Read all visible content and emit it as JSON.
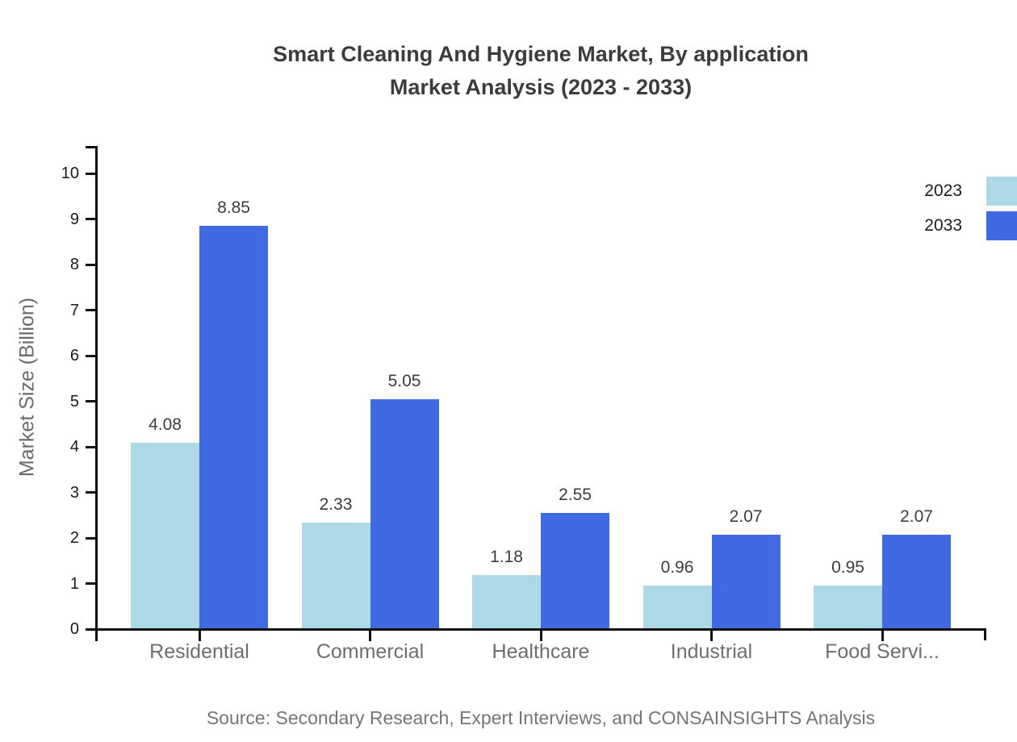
{
  "title": {
    "line1": "Smart Cleaning And Hygiene Market, By application",
    "line2": "Market Analysis (2023 - 2033)"
  },
  "source_note": "Source: Secondary Research, Expert Interviews, and CONSAINSIGHTS Analysis",
  "chart_data": {
    "type": "bar",
    "categories": [
      "Residential",
      "Commercial",
      "Healthcare",
      "Industrial",
      "Food Servi..."
    ],
    "series": [
      {
        "name": "2023",
        "color": "#ADD8E6",
        "values": [
          4.08,
          2.33,
          1.18,
          0.96,
          0.95
        ]
      },
      {
        "name": "2033",
        "color": "#4169E1",
        "values": [
          8.85,
          5.05,
          2.55,
          2.07,
          2.07
        ]
      }
    ],
    "title": "Smart Cleaning And Hygiene Market, By application Market Analysis (2023 - 2033)",
    "xlabel": "",
    "ylabel": "Market Size (Billion)",
    "ylim": [
      0,
      10
    ],
    "ytick_step": 1,
    "yticks": [
      0,
      1,
      2,
      3,
      4,
      5,
      6,
      7,
      8,
      9,
      10
    ],
    "value_label_decimals": 2,
    "grid": false,
    "legend_position": "top-right",
    "axis_color": "#111111",
    "text_colors": {
      "title": "#3c3c3c",
      "tick_labels": "#1b1b1b",
      "category_labels": "#6e6e6e",
      "axis_title": "#6b6b6b",
      "source": "#757575"
    }
  }
}
